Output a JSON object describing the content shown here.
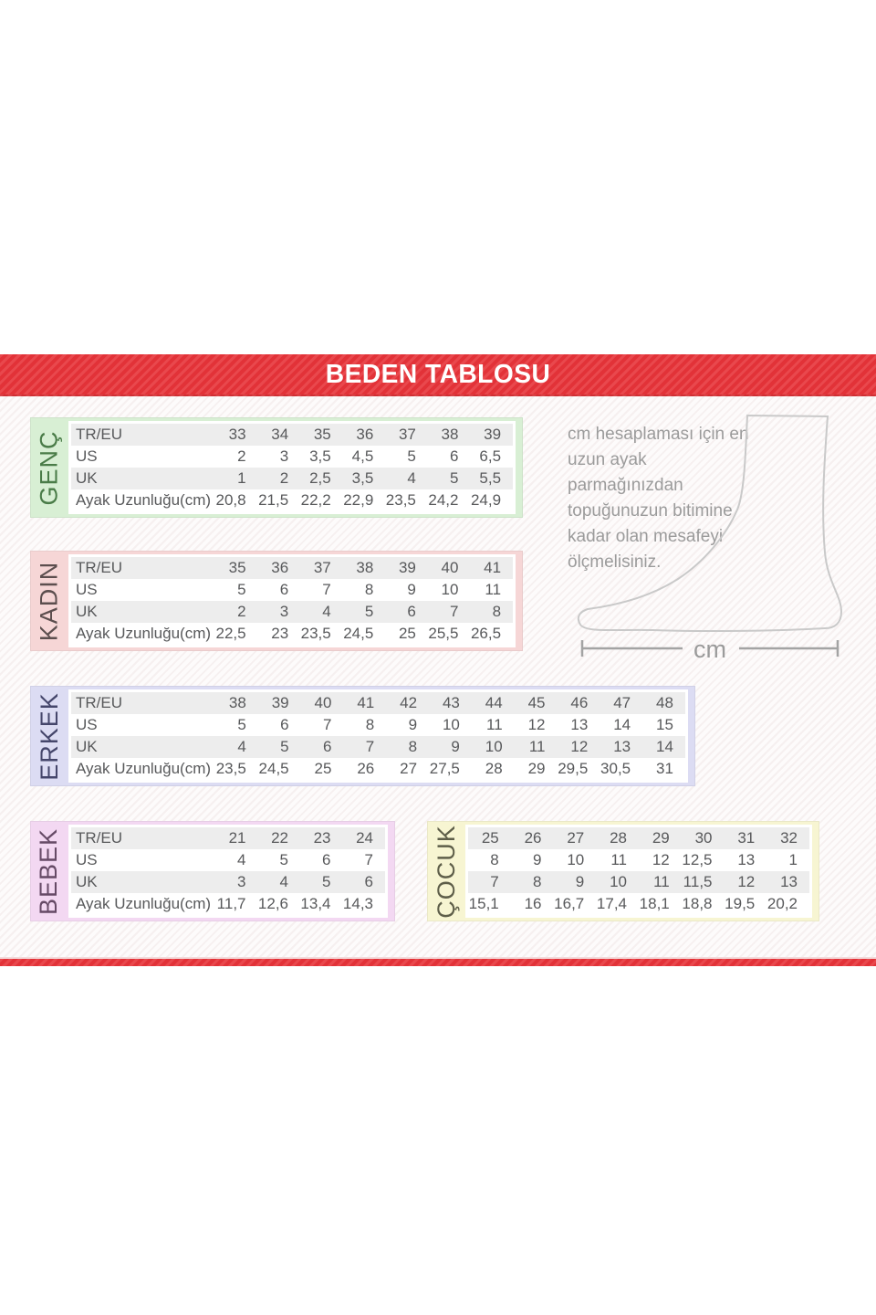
{
  "header": {
    "title": "BEDEN TABLOSU"
  },
  "instruction": {
    "lines": [
      "cm hesaplaması için en",
      "uzun ayak parmağınızdan",
      "topuğunuzun bitimine",
      "kadar olan mesafeyi",
      "ölçmelisiniz."
    ]
  },
  "measure": {
    "label": "cm"
  },
  "row_labels": [
    "TR/EU",
    "US",
    "UK",
    "Ayak Uzunluğu(cm)"
  ],
  "accent_color": "#e73339",
  "tables": [
    {
      "id": "genc",
      "label": "GENÇ",
      "colors": {
        "bg": "#d8efd4",
        "label": "#4a7c48"
      },
      "show_row_labels": true,
      "rows": [
        [
          "33",
          "34",
          "35",
          "36",
          "37",
          "38",
          "39"
        ],
        [
          "2",
          "3",
          "3,5",
          "4,5",
          "5",
          "6",
          "6,5"
        ],
        [
          "1",
          "2",
          "2,5",
          "3,5",
          "4",
          "5",
          "5,5"
        ],
        [
          "20,8",
          "21,5",
          "22,2",
          "22,9",
          "23,5",
          "24,2",
          "24,9"
        ]
      ]
    },
    {
      "id": "kadin",
      "label": "KADIN",
      "colors": {
        "bg": "#f6d6d6",
        "label": "#5c4e4e"
      },
      "show_row_labels": true,
      "rows": [
        [
          "35",
          "36",
          "37",
          "38",
          "39",
          "40",
          "41"
        ],
        [
          "5",
          "6",
          "7",
          "8",
          "9",
          "10",
          "11"
        ],
        [
          "2",
          "3",
          "4",
          "5",
          "6",
          "7",
          "8"
        ],
        [
          "22,5",
          "23",
          "23,5",
          "24,5",
          "25",
          "25,5",
          "26,5"
        ]
      ]
    },
    {
      "id": "erkek",
      "label": "ERKEK",
      "colors": {
        "bg": "#dcdcf3",
        "label": "#45466b"
      },
      "show_row_labels": true,
      "rows": [
        [
          "38",
          "39",
          "40",
          "41",
          "42",
          "43",
          "44",
          "45",
          "46",
          "47",
          "48"
        ],
        [
          "5",
          "6",
          "7",
          "8",
          "9",
          "10",
          "11",
          "12",
          "13",
          "14",
          "15"
        ],
        [
          "4",
          "5",
          "6",
          "7",
          "8",
          "9",
          "10",
          "11",
          "12",
          "13",
          "14"
        ],
        [
          "23,5",
          "24,5",
          "25",
          "26",
          "27",
          "27,5",
          "28",
          "29",
          "29,5",
          "30,5",
          "31"
        ]
      ]
    },
    {
      "id": "bebek",
      "label": "BEBEK",
      "colors": {
        "bg": "#f3d8f2",
        "label": "#664a66"
      },
      "show_row_labels": true,
      "rows": [
        [
          "21",
          "22",
          "23",
          "24"
        ],
        [
          "4",
          "5",
          "6",
          "7"
        ],
        [
          "3",
          "4",
          "5",
          "6"
        ],
        [
          "11,7",
          "12,6",
          "13,4",
          "14,3"
        ]
      ]
    },
    {
      "id": "cocuk",
      "label": "ÇOCUK",
      "colors": {
        "bg": "#f7f5d2",
        "label": "#5e5e49"
      },
      "show_row_labels": false,
      "rows": [
        [
          "25",
          "26",
          "27",
          "28",
          "29",
          "30",
          "31",
          "32"
        ],
        [
          "8",
          "9",
          "10",
          "11",
          "12",
          "12,5",
          "13",
          "1"
        ],
        [
          "7",
          "8",
          "9",
          "10",
          "11",
          "11,5",
          "12",
          "13"
        ],
        [
          "15,1",
          "16",
          "16,7",
          "17,4",
          "18,1",
          "18,8",
          "19,5",
          "20,2"
        ]
      ]
    }
  ]
}
